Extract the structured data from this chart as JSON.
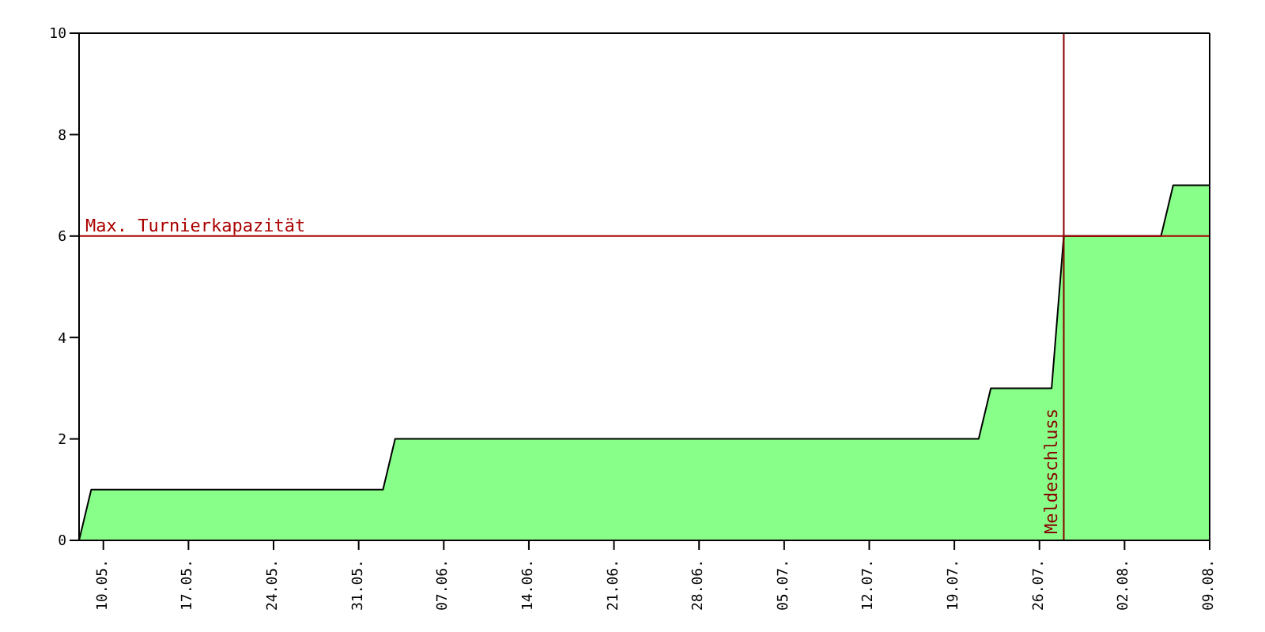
{
  "chart_data": {
    "type": "area",
    "x": [
      "--05-08",
      "--05-09",
      "--06-02",
      "--06-03",
      "--07-21",
      "--07-22",
      "--07-27",
      "--07-28",
      "--08-05",
      "--08-06",
      "--08-09"
    ],
    "series": [
      {
        "color": "#88ff88",
        "values": [
          0,
          1,
          1,
          2,
          2,
          3,
          3,
          6,
          6,
          7,
          7
        ]
      }
    ],
    "xlim": [
      "--05-08",
      "--08-09"
    ],
    "xticks": [
      {
        "value": "--05-10",
        "label": "10.05."
      },
      {
        "value": "--05-17",
        "label": "17.05."
      },
      {
        "value": "--05-24",
        "label": "24.05."
      },
      {
        "value": "--05-31",
        "label": "31.05."
      },
      {
        "value": "--06-07",
        "label": "07.06."
      },
      {
        "value": "--06-14",
        "label": "14.06."
      },
      {
        "value": "--06-21",
        "label": "21.06."
      },
      {
        "value": "--06-28",
        "label": "28.06."
      },
      {
        "value": "--07-05",
        "label": "05.07."
      },
      {
        "value": "--07-12",
        "label": "12.07."
      },
      {
        "value": "--07-19",
        "label": "19.07."
      },
      {
        "value": "--07-26",
        "label": "26.07."
      },
      {
        "value": "--08-02",
        "label": "02.08."
      },
      {
        "value": "--08-09",
        "label": "09.08."
      }
    ],
    "ylim": [
      0,
      10
    ],
    "yticks": [
      0,
      2,
      4,
      6,
      8,
      10
    ],
    "ref_lines": [
      {
        "axis": "y",
        "value": 6,
        "label": "Max. Turnierkapazität",
        "color": "#aa0000"
      },
      {
        "axis": "x",
        "value": "--07-28",
        "label": "Meldeschluss",
        "color": "#880000"
      }
    ]
  }
}
